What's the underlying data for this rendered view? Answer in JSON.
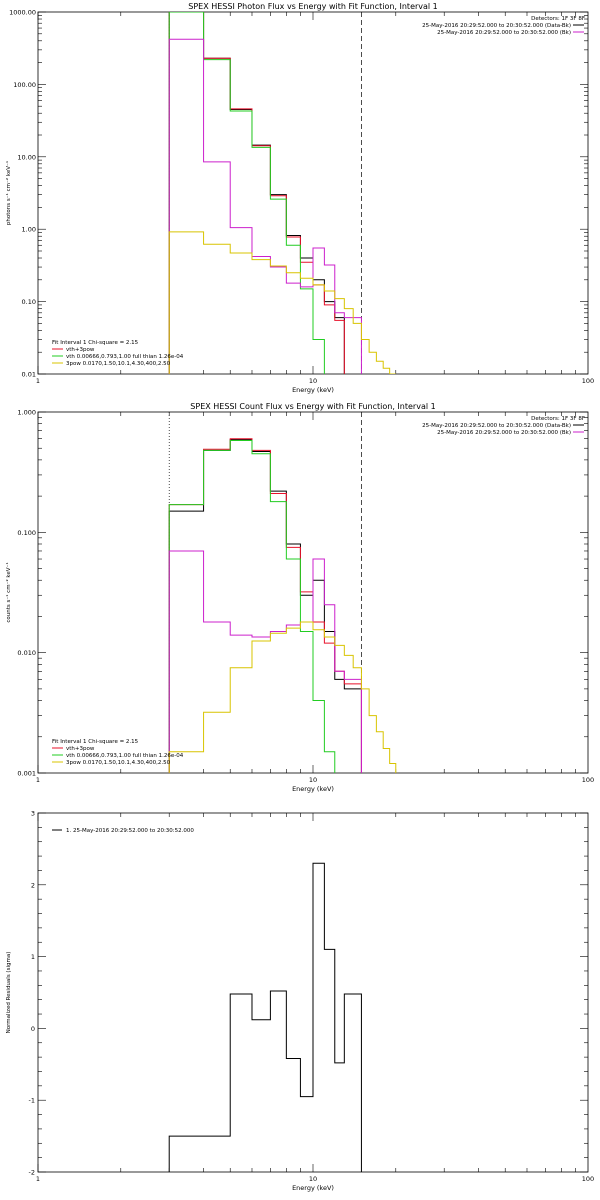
{
  "colors": {
    "black": "#000000",
    "red": "#e8102a",
    "green": "#22cc22",
    "magenta": "#cc20cc",
    "yellow": "#d8c400"
  },
  "chart_data": [
    {
      "type": "line",
      "style": "step",
      "title": "SPEX HESSI Photon Flux vs Energy with Fit Function, Interval 1",
      "xlabel": "Energy (keV)",
      "ylabel": "photons s⁻¹ cm⁻² keV⁻¹",
      "xscale": "log",
      "yscale": "log",
      "xlim": [
        1,
        100
      ],
      "ylim": [
        0.01,
        1000
      ],
      "xtick_labels": [
        "1",
        "10",
        "100"
      ],
      "ytick_labels": [
        "0.01",
        "0.10",
        "1.00",
        "10.00",
        "100.00",
        "1000.00"
      ],
      "vlines": [
        {
          "x": 3.0,
          "style": "dotted"
        },
        {
          "x": 15.0,
          "style": "dashed"
        }
      ],
      "legend_top_right": [
        "Detectors: 1F 3F 8F",
        "25-May-2016 20:29:52.000 to 20:30:52.000 (Data-Bk)",
        "25-May-2016 20:29:52.000 to 20:30:52.000 (Bk)"
      ],
      "legend_bottom_left": [
        "Fit Interval 1   Chi-square = 2.15",
        "vth+3pow",
        "vth 0.00666,0.793,1.00  full thian 1.26e-04",
        "3pow 0.0170,1.50,10.1,4.30,400,2.50"
      ],
      "series": [
        {
          "name": "Data-Bk",
          "color": "black",
          "edges": [
            3.0,
            4.0,
            5.0,
            6.0,
            7.0,
            8.0,
            9.0,
            10.0,
            11.0,
            12.0,
            13.0
          ],
          "values": [
            1000,
            230,
            45,
            14.5,
            3.0,
            0.82,
            0.4,
            0.2,
            0.1,
            0.06
          ]
        },
        {
          "name": "vth+3pow",
          "color": "red",
          "edges": [
            3.0,
            4.0,
            5.0,
            6.0,
            7.0,
            8.0,
            9.0,
            10.0,
            11.0,
            12.0,
            13.0
          ],
          "values": [
            1000,
            230,
            46,
            14.2,
            2.9,
            0.78,
            0.35,
            0.17,
            0.09,
            0.055
          ]
        },
        {
          "name": "vth",
          "color": "green",
          "edges": [
            3.0,
            4.0,
            5.0,
            6.0,
            7.0,
            8.0,
            9.0,
            10.0,
            11.0
          ],
          "values": [
            1000,
            220,
            43,
            13.5,
            2.6,
            0.6,
            0.15,
            0.03
          ]
        },
        {
          "name": "Bk",
          "color": "magenta",
          "edges": [
            3.0,
            4.0,
            5.0,
            6.0,
            7.0,
            8.0,
            9.0,
            10.0,
            11.0,
            12.0,
            13.0,
            15.0
          ],
          "values": [
            420,
            8.5,
            1.05,
            0.42,
            0.3,
            0.18,
            0.16,
            0.55,
            0.32,
            0.07,
            0.06
          ]
        },
        {
          "name": "3pow",
          "color": "yellow",
          "edges": [
            3.0,
            4.0,
            5.0,
            6.0,
            7.0,
            8.0,
            9.0,
            10.0,
            11.0,
            12.0,
            13.0,
            14.0,
            15.0,
            16.0,
            17.0,
            18.0,
            19.0,
            20.0
          ],
          "values": [
            0.92,
            0.62,
            0.47,
            0.38,
            0.31,
            0.25,
            0.21,
            0.17,
            0.14,
            0.11,
            0.08,
            0.05,
            0.03,
            0.02,
            0.015,
            0.012,
            0.01
          ]
        }
      ]
    },
    {
      "type": "line",
      "style": "step",
      "title": "SPEX HESSI Count Flux vs Energy with Fit Function, Interval 1",
      "xlabel": "Energy (keV)",
      "ylabel": "counts s⁻¹ cm⁻² keV⁻¹",
      "xscale": "log",
      "yscale": "log",
      "xlim": [
        1,
        100
      ],
      "ylim": [
        0.001,
        1.0
      ],
      "xtick_labels": [
        "1",
        "10",
        "100"
      ],
      "ytick_labels": [
        "0.001",
        "0.010",
        "0.100",
        "1.000"
      ],
      "vlines": [
        {
          "x": 3.0,
          "style": "dotted"
        },
        {
          "x": 15.0,
          "style": "dashed"
        }
      ],
      "legend_top_right": [
        "Detectors: 1F 3F 8F",
        "25-May-2016 20:29:52.000 to 20:30:52.000 (Data-Bk)",
        "25-May-2016 20:29:52.000 to 20:30:52.000 (Bk)"
      ],
      "legend_bottom_left": [
        "Fit Interval 1   Chi-square = 2.15",
        "vth+3pow",
        "vth 0.00666,0.793,1.00  full thian 1.26e-04",
        "3pow 0.0170,1.50,10.1,4.30,400,2.50"
      ],
      "series": [
        {
          "name": "Data-Bk",
          "color": "black",
          "edges": [
            3.0,
            4.0,
            5.0,
            6.0,
            7.0,
            8.0,
            9.0,
            10.0,
            11.0,
            12.0,
            13.0,
            15.0
          ],
          "values": [
            0.15,
            0.48,
            0.59,
            0.47,
            0.22,
            0.08,
            0.03,
            0.04,
            0.015,
            0.006,
            0.005
          ]
        },
        {
          "name": "vth+3pow",
          "color": "red",
          "edges": [
            3.0,
            4.0,
            5.0,
            6.0,
            7.0,
            8.0,
            9.0,
            10.0,
            11.0,
            12.0,
            13.0,
            15.0
          ],
          "values": [
            0.17,
            0.49,
            0.6,
            0.48,
            0.21,
            0.075,
            0.032,
            0.018,
            0.012,
            0.007,
            0.0055
          ]
        },
        {
          "name": "vth",
          "color": "green",
          "edges": [
            3.0,
            4.0,
            5.0,
            6.0,
            7.0,
            8.0,
            9.0,
            10.0,
            11.0,
            12.0
          ],
          "values": [
            0.17,
            0.48,
            0.58,
            0.45,
            0.18,
            0.06,
            0.015,
            0.004,
            0.0015
          ]
        },
        {
          "name": "Bk",
          "color": "magenta",
          "edges": [
            3.0,
            4.0,
            5.0,
            6.0,
            7.0,
            8.0,
            9.0,
            10.0,
            11.0,
            12.0,
            13.0,
            15.0
          ],
          "values": [
            0.07,
            0.018,
            0.014,
            0.0135,
            0.015,
            0.017,
            0.018,
            0.06,
            0.025,
            0.007,
            0.006
          ]
        },
        {
          "name": "3pow",
          "color": "yellow",
          "edges": [
            3.0,
            4.0,
            5.0,
            6.0,
            7.0,
            8.0,
            9.0,
            10.0,
            11.0,
            12.0,
            13.0,
            14.0,
            15.0,
            16.0,
            17.0,
            18.0,
            19.0,
            20.0
          ],
          "values": [
            0.0015,
            0.0032,
            0.0075,
            0.0125,
            0.0145,
            0.016,
            0.018,
            0.0155,
            0.0135,
            0.0115,
            0.0095,
            0.0075,
            0.005,
            0.003,
            0.0022,
            0.0016,
            0.0012
          ]
        }
      ]
    },
    {
      "type": "line",
      "style": "step",
      "title": "",
      "xlabel": "Energy (keV)",
      "ylabel": "Normalized Residuals (sigma)",
      "xscale": "log",
      "yscale": "linear",
      "xlim": [
        1,
        100
      ],
      "ylim": [
        -2,
        3
      ],
      "xtick_labels": [
        "1",
        "10",
        "100"
      ],
      "ytick_labels": [
        "-2",
        "-1",
        "0",
        "1",
        "2",
        "3"
      ],
      "legend_top_left": [
        "1. 25-May-2016 20:29:52.000 to 20:30:52.000"
      ],
      "series": [
        {
          "name": "1. 25-May-2016 20:29:52.000 to 20:30:52.000",
          "color": "black",
          "edges": [
            3.0,
            4.0,
            5.0,
            6.0,
            7.0,
            8.0,
            9.0,
            10.0,
            11.0,
            12.0,
            13.0,
            15.0
          ],
          "values": [
            -1.5,
            -1.5,
            0.48,
            0.12,
            0.52,
            -0.42,
            -0.95,
            2.3,
            1.1,
            -0.48,
            0.48
          ]
        }
      ]
    }
  ]
}
